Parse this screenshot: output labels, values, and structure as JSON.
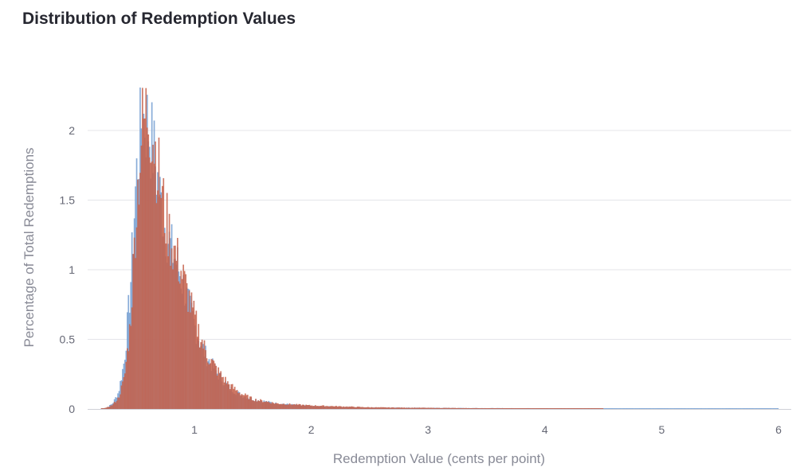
{
  "chart_data": {
    "type": "bar",
    "title": "Distribution of Redemption Values",
    "xlabel": "Redemption Value (cents per point)",
    "ylabel": "Percentage of Total Redemptions",
    "xlim": [
      0.1,
      6.1
    ],
    "ylim": [
      0,
      2.2
    ],
    "x_ticks": [
      1,
      2,
      3,
      4,
      5,
      6
    ],
    "y_ticks": [
      0,
      0.5,
      1,
      1.5,
      2
    ],
    "y_tick_labels": [
      "0",
      "0.5",
      "1",
      "1.5",
      "2"
    ],
    "grid": true,
    "series": [
      {
        "color": "#7ba3d4",
        "points": [
          [
            0.2,
            0.0
          ],
          [
            0.25,
            0.01
          ],
          [
            0.3,
            0.04
          ],
          [
            0.35,
            0.12
          ],
          [
            0.4,
            0.35
          ],
          [
            0.45,
            0.85
          ],
          [
            0.5,
            1.65
          ],
          [
            0.55,
            2.1
          ],
          [
            0.6,
            2.05
          ],
          [
            0.65,
            1.85
          ],
          [
            0.7,
            1.55
          ],
          [
            0.75,
            1.3
          ],
          [
            0.8,
            1.15
          ],
          [
            0.85,
            1.05
          ],
          [
            0.9,
            0.9
          ],
          [
            0.95,
            0.75
          ],
          [
            1.0,
            0.6
          ],
          [
            1.05,
            0.48
          ],
          [
            1.1,
            0.38
          ],
          [
            1.2,
            0.25
          ],
          [
            1.3,
            0.15
          ],
          [
            1.4,
            0.1
          ],
          [
            1.5,
            0.07
          ],
          [
            1.7,
            0.04
          ],
          [
            2.0,
            0.02
          ],
          [
            2.5,
            0.01
          ],
          [
            3.0,
            0.008
          ],
          [
            3.5,
            0.006
          ],
          [
            4.0,
            0.005
          ],
          [
            4.5,
            0.004
          ],
          [
            5.0,
            0.004
          ],
          [
            5.5,
            0.004
          ],
          [
            6.0,
            0.004
          ]
        ]
      },
      {
        "color": "#c5604a",
        "points": [
          [
            0.2,
            0.0
          ],
          [
            0.25,
            0.01
          ],
          [
            0.3,
            0.03
          ],
          [
            0.35,
            0.08
          ],
          [
            0.4,
            0.22
          ],
          [
            0.45,
            0.6
          ],
          [
            0.5,
            1.4
          ],
          [
            0.55,
            2.0
          ],
          [
            0.6,
            2.15
          ],
          [
            0.65,
            1.95
          ],
          [
            0.7,
            1.65
          ],
          [
            0.75,
            1.38
          ],
          [
            0.8,
            1.2
          ],
          [
            0.85,
            1.08
          ],
          [
            0.9,
            0.95
          ],
          [
            0.95,
            0.8
          ],
          [
            1.0,
            0.65
          ],
          [
            1.05,
            0.52
          ],
          [
            1.1,
            0.4
          ],
          [
            1.2,
            0.27
          ],
          [
            1.3,
            0.17
          ],
          [
            1.4,
            0.11
          ],
          [
            1.5,
            0.07
          ],
          [
            1.7,
            0.04
          ],
          [
            2.0,
            0.025
          ],
          [
            2.5,
            0.012
          ],
          [
            3.0,
            0.008
          ],
          [
            3.5,
            0.005
          ],
          [
            4.0,
            0.004
          ],
          [
            4.3,
            0.003
          ],
          [
            4.5,
            0.0
          ]
        ]
      }
    ]
  }
}
